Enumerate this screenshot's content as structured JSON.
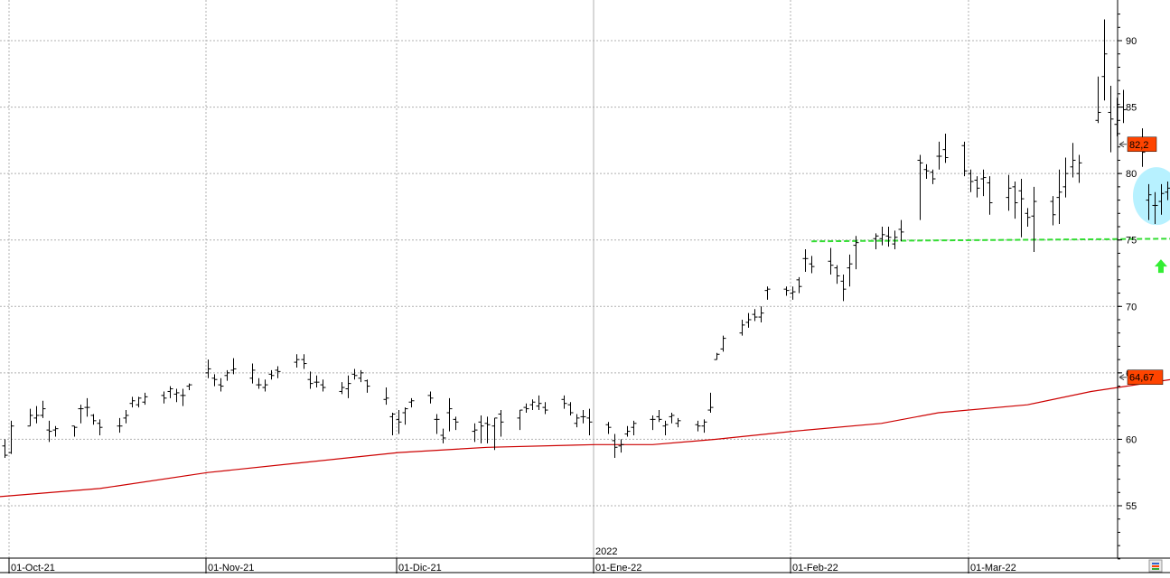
{
  "chart_data": {
    "type": "ohlc",
    "title": "",
    "xlabel": "",
    "ylabel": "",
    "ylim": [
      50.5,
      92.5
    ],
    "grid": true,
    "y_ticks": [
      55,
      60,
      65,
      70,
      75,
      80,
      85,
      90
    ],
    "y_tick_labels": [
      "55",
      "60",
      "65",
      "70",
      "75",
      "80",
      "85",
      "90"
    ],
    "x_tick_labels": [
      {
        "date": "2021-10-01",
        "label": "01-Oct-21"
      },
      {
        "date": "2021-11-01",
        "label": "01-Nov-21"
      },
      {
        "date": "2021-12-01",
        "label": "01-Dic-21"
      },
      {
        "date": "2022-01-01",
        "label": "01-Ene-22"
      },
      {
        "date": "2022-02-01",
        "label": "01-Feb-22"
      },
      {
        "date": "2022-03-01",
        "label": "01-Mar-22"
      }
    ],
    "year_marker": {
      "date": "2022-01-01",
      "label": "2022"
    },
    "series": [
      {
        "kind": "ohlc",
        "color": "#000000",
        "bars": [
          [
            "2021-09-30",
            59.5,
            60.0,
            58.6,
            58.8
          ],
          [
            "2021-10-01",
            59.0,
            61.4,
            58.9,
            61.0
          ],
          [
            "2021-10-04",
            61.0,
            62.3,
            61.0,
            61.8
          ],
          [
            "2021-10-05",
            61.6,
            62.5,
            61.2,
            61.8
          ],
          [
            "2021-10-06",
            61.8,
            62.9,
            61.6,
            62.3
          ],
          [
            "2021-10-07",
            60.7,
            61.4,
            59.8,
            60.6
          ],
          [
            "2021-10-08",
            60.7,
            61.0,
            60.2,
            60.8
          ],
          [
            "2021-10-11",
            61.0,
            61.0,
            60.2,
            60.9
          ],
          [
            "2021-10-12",
            62.3,
            62.6,
            61.2,
            62.3
          ],
          [
            "2021-10-13",
            62.4,
            63.1,
            61.7,
            62.4
          ],
          [
            "2021-10-14",
            61.8,
            61.9,
            61.1,
            61.4
          ],
          [
            "2021-10-15",
            61.2,
            61.5,
            60.3,
            60.9
          ],
          [
            "2021-10-18",
            61.0,
            61.6,
            60.5,
            61.0
          ],
          [
            "2021-10-19",
            61.6,
            62.2,
            61.2,
            61.8
          ],
          [
            "2021-10-20",
            62.7,
            63.2,
            62.4,
            62.9
          ],
          [
            "2021-10-21",
            62.6,
            63.2,
            62.4,
            63.1
          ],
          [
            "2021-10-22",
            62.8,
            63.5,
            62.6,
            63.2
          ],
          [
            "2021-10-25",
            63.3,
            63.6,
            62.7,
            63.1
          ],
          [
            "2021-10-26",
            63.6,
            64.0,
            63.1,
            63.8
          ],
          [
            "2021-10-27",
            63.4,
            63.8,
            62.8,
            63.5
          ],
          [
            "2021-10-28",
            63.3,
            63.8,
            62.5,
            63.3
          ],
          [
            "2021-10-29",
            64.0,
            64.2,
            63.7,
            64.1
          ],
          [
            "2021-11-01",
            65.0,
            66.0,
            64.6,
            65.3
          ],
          [
            "2021-11-02",
            64.6,
            64.9,
            64.0,
            64.5
          ],
          [
            "2021-11-03",
            64.1,
            64.6,
            63.6,
            64.0
          ],
          [
            "2021-11-04",
            64.8,
            65.2,
            64.4,
            65.0
          ],
          [
            "2021-11-05",
            65.2,
            66.1,
            64.9,
            65.3
          ],
          [
            "2021-11-08",
            64.6,
            65.7,
            64.2,
            65.2
          ],
          [
            "2021-11-09",
            64.1,
            64.6,
            63.8,
            64.1
          ],
          [
            "2021-11-10",
            63.9,
            64.5,
            63.6,
            64.1
          ],
          [
            "2021-11-11",
            64.9,
            65.2,
            64.5,
            64.8
          ],
          [
            "2021-11-12",
            65.2,
            65.5,
            64.6,
            65.1
          ],
          [
            "2021-11-15",
            65.8,
            66.4,
            65.4,
            66.0
          ],
          [
            "2021-11-16",
            66.0,
            66.4,
            65.3,
            65.7
          ],
          [
            "2021-11-17",
            64.5,
            65.1,
            63.8,
            64.2
          ],
          [
            "2021-11-18",
            64.3,
            64.8,
            63.9,
            64.3
          ],
          [
            "2021-11-19",
            64.1,
            64.5,
            63.6,
            63.9
          ],
          [
            "2021-11-22",
            63.6,
            64.3,
            63.4,
            63.9
          ],
          [
            "2021-11-23",
            63.8,
            64.8,
            63.1,
            64.2
          ],
          [
            "2021-11-24",
            64.9,
            65.3,
            64.5,
            64.8
          ],
          [
            "2021-11-25",
            64.6,
            65.2,
            64.3,
            65.0
          ],
          [
            "2021-11-26",
            64.4,
            64.5,
            63.5,
            64.0
          ],
          [
            "2021-11-29",
            63.0,
            63.9,
            62.6,
            63.1
          ],
          [
            "2021-11-30",
            61.7,
            62.0,
            60.3,
            61.9
          ],
          [
            "2021-12-01",
            61.5,
            62.2,
            60.4,
            61.3
          ],
          [
            "2021-12-02",
            62.0,
            62.4,
            61.1,
            62.3
          ],
          [
            "2021-12-03",
            62.8,
            63.1,
            62.4,
            62.9
          ],
          [
            "2021-12-06",
            63.3,
            63.6,
            62.7,
            63.1
          ],
          [
            "2021-12-07",
            61.5,
            61.9,
            60.4,
            61.5
          ],
          [
            "2021-12-08",
            60.3,
            60.8,
            59.7,
            60.1
          ],
          [
            "2021-12-09",
            62.0,
            63.1,
            60.6,
            62.3
          ],
          [
            "2021-12-10",
            61.5,
            61.7,
            60.7,
            61.3
          ],
          [
            "2021-12-13",
            60.6,
            61.2,
            59.8,
            60.7
          ],
          [
            "2021-12-14",
            61.3,
            61.8,
            59.7,
            61.0
          ],
          [
            "2021-12-15",
            61.2,
            61.7,
            59.7,
            61.1
          ],
          [
            "2021-12-16",
            61.0,
            61.6,
            59.2,
            61.6
          ],
          [
            "2021-12-17",
            61.9,
            62.2,
            60.2,
            61.3
          ],
          [
            "2021-12-20",
            61.6,
            62.2,
            60.7,
            62.2
          ],
          [
            "2021-12-21",
            62.4,
            62.7,
            62.0,
            62.3
          ],
          [
            "2021-12-22",
            62.6,
            63.0,
            62.2,
            62.8
          ],
          [
            "2021-12-23",
            62.5,
            63.3,
            62.2,
            62.7
          ],
          [
            "2021-12-24",
            62.4,
            62.8,
            61.9,
            62.2
          ],
          [
            "2021-12-27",
            63.0,
            63.3,
            62.3,
            62.7
          ],
          [
            "2021-12-28",
            62.6,
            62.8,
            61.8,
            62.0
          ],
          [
            "2021-12-29",
            61.2,
            61.9,
            60.9,
            61.6
          ],
          [
            "2021-12-30",
            61.7,
            62.2,
            61.2,
            61.7
          ],
          [
            "2021-12-31",
            61.6,
            62.3,
            60.3,
            61.3
          ],
          [
            "2022-01-03",
            61.1,
            61.3,
            60.4,
            60.9
          ],
          [
            "2022-01-04",
            59.9,
            60.4,
            58.6,
            59.4
          ],
          [
            "2022-01-05",
            59.5,
            60.0,
            59.0,
            59.6
          ],
          [
            "2022-01-06",
            60.4,
            61.0,
            60.2,
            60.6
          ],
          [
            "2022-01-07",
            60.9,
            61.4,
            60.3,
            61.2
          ],
          [
            "2022-01-10",
            61.5,
            61.8,
            60.7,
            61.5
          ],
          [
            "2022-01-11",
            61.7,
            62.2,
            61.3,
            61.5
          ],
          [
            "2022-01-12",
            61.0,
            61.4,
            60.3,
            61.1
          ],
          [
            "2022-01-13",
            61.7,
            62.0,
            61.2,
            61.8
          ],
          [
            "2022-01-14",
            61.2,
            61.6,
            60.9,
            61.4
          ],
          [
            "2022-01-17",
            61.1,
            61.4,
            60.6,
            61.0
          ],
          [
            "2022-01-18",
            61.0,
            61.5,
            60.5,
            61.3
          ],
          [
            "2022-01-19",
            62.2,
            63.5,
            62.0,
            62.4
          ],
          [
            "2022-01-20",
            66.0,
            66.5,
            66.0,
            66.4
          ],
          [
            "2022-01-21",
            66.8,
            67.8,
            66.6,
            67.6
          ],
          [
            "2022-01-24",
            68.0,
            69.0,
            67.8,
            68.6
          ],
          [
            "2022-01-25",
            68.8,
            69.5,
            68.4,
            69.0
          ],
          [
            "2022-01-26",
            69.4,
            69.8,
            68.9,
            69.2
          ],
          [
            "2022-01-27",
            69.2,
            70.0,
            68.8,
            69.5
          ],
          [
            "2022-01-28",
            71.2,
            71.5,
            70.5,
            71.3
          ],
          [
            "2022-01-31",
            71.3,
            71.5,
            70.8,
            71.2
          ],
          [
            "2022-02-01",
            71.0,
            71.5,
            70.5,
            71.1
          ],
          [
            "2022-02-02",
            72.0,
            72.2,
            71.0,
            71.5
          ],
          [
            "2022-02-03",
            73.6,
            74.3,
            72.6,
            73.6
          ],
          [
            "2022-02-04",
            73.2,
            73.8,
            72.5,
            73.0
          ],
          [
            "2022-02-07",
            73.4,
            74.4,
            72.4,
            73.1
          ],
          [
            "2022-02-08",
            72.9,
            73.1,
            71.7,
            72.3
          ],
          [
            "2022-02-09",
            71.9,
            72.4,
            70.4,
            71.3
          ],
          [
            "2022-02-10",
            72.9,
            73.9,
            71.5,
            73.2
          ],
          [
            "2022-02-11",
            74.6,
            75.3,
            72.8,
            74.8
          ],
          [
            "2022-02-14",
            75.1,
            75.5,
            74.3,
            75.3
          ],
          [
            "2022-02-15",
            75.1,
            76.0,
            74.6,
            75.4
          ],
          [
            "2022-02-16",
            75.3,
            76.0,
            74.5,
            75.2
          ],
          [
            "2022-02-17",
            74.7,
            75.7,
            74.3,
            75.2
          ],
          [
            "2022-02-18",
            75.8,
            76.5,
            74.9,
            75.6
          ],
          [
            "2022-02-21",
            81.0,
            81.4,
            76.5,
            80.8
          ],
          [
            "2022-02-22",
            80.3,
            80.7,
            79.6,
            80.2
          ],
          [
            "2022-02-23",
            80.1,
            80.3,
            79.2,
            79.6
          ],
          [
            "2022-02-24",
            81.3,
            82.4,
            80.3,
            81.3
          ],
          [
            "2022-02-25",
            81.8,
            83.0,
            80.8,
            81.2
          ],
          [
            "2022-02-28",
            82.1,
            82.4,
            79.8,
            80.2
          ]
        ]
      },
      {
        "kind": "ohlc_tail",
        "color": "#000000",
        "bars": [
          [
            "2022-03-01",
            80.0,
            80.3,
            78.6,
            79.4
          ],
          [
            "2022-03-02",
            79.5,
            79.8,
            78.2,
            78.9
          ],
          [
            "2022-03-03",
            79.6,
            80.3,
            78.3,
            79.7
          ],
          [
            "2022-03-04",
            79.3,
            79.8,
            76.9,
            77.8
          ],
          [
            "2022-03-07",
            78.2,
            79.9,
            77.2,
            78.9
          ],
          [
            "2022-03-08",
            79.0,
            79.4,
            76.6,
            77.8
          ],
          [
            "2022-03-09",
            78.7,
            79.6,
            75.2,
            78.1
          ],
          [
            "2022-03-10",
            77.0,
            77.4,
            76.0,
            76.7
          ],
          [
            "2022-03-11",
            76.8,
            79.0,
            74.1,
            77.9
          ],
          [
            "2022-03-14",
            77.9,
            78.3,
            76.1,
            76.9
          ],
          [
            "2022-03-15",
            78.2,
            80.3,
            76.2,
            78.6
          ],
          [
            "2022-03-16",
            79.0,
            81.2,
            78.2,
            80.0
          ],
          [
            "2022-03-17",
            80.5,
            82.3,
            79.7,
            81.0
          ],
          [
            "2022-03-18",
            80.0,
            81.4,
            79.3,
            80.8
          ],
          [
            "2022-03-21",
            84.0,
            87.3,
            83.8,
            84.6
          ],
          [
            "2022-03-22",
            87.3,
            91.6,
            85.5,
            89.0
          ],
          [
            "2022-03-23",
            84.6,
            86.6,
            81.6,
            84.1
          ],
          [
            "2022-03-24",
            83.7,
            85.7,
            82.8,
            85.2
          ],
          [
            "2022-03-25",
            85.0,
            86.3,
            83.8,
            84.8
          ],
          [
            "2022-03-28",
            82.3,
            83.4,
            80.5,
            81.6
          ],
          [
            "2022-03-29",
            78.0,
            79.2,
            76.5,
            78.4
          ],
          [
            "2022-03-30",
            77.6,
            78.6,
            76.2,
            77.6
          ],
          [
            "2022-03-31",
            77.9,
            79.2,
            76.9,
            78.5
          ],
          [
            "2022-04-01",
            78.6,
            79.4,
            78.0,
            78.9
          ],
          [
            "2022-04-04",
            80.0,
            82.5,
            79.8,
            82.2
          ]
        ]
      },
      {
        "kind": "line",
        "name": "",
        "color": "#cc0000",
        "points": [
          [
            "2021-09-27",
            55.6
          ],
          [
            "2021-10-15",
            56.3
          ],
          [
            "2021-11-01",
            57.5
          ],
          [
            "2021-11-15",
            58.2
          ],
          [
            "2021-12-01",
            59.0
          ],
          [
            "2021-12-15",
            59.4
          ],
          [
            "2022-01-01",
            59.6
          ],
          [
            "2022-01-10",
            59.6
          ],
          [
            "2022-01-20",
            60.0
          ],
          [
            "2022-02-01",
            60.6
          ],
          [
            "2022-02-15",
            61.2
          ],
          [
            "2022-02-24",
            62.0
          ],
          [
            "2022-03-10",
            62.6
          ],
          [
            "2022-03-20",
            63.6
          ],
          [
            "2022-04-04",
            64.67
          ]
        ]
      },
      {
        "kind": "dashed_line",
        "name": "",
        "color": "#33dd33",
        "points": [
          [
            "2022-02-04",
            74.9
          ],
          [
            "2022-04-04",
            75.1
          ]
        ]
      }
    ],
    "price_badges": [
      {
        "value": 82.2,
        "label": "82,2",
        "color": "#ff4400"
      },
      {
        "value": 64.67,
        "label": "64,67",
        "color": "#ff4400"
      }
    ],
    "annotations": [
      {
        "kind": "ellipse",
        "center_date": "2022-03-30",
        "center_value": 78.3,
        "color": "#aaeeff"
      },
      {
        "kind": "arrow_up",
        "date": "2022-03-30",
        "value": 73.0,
        "color": "#33ee33"
      }
    ]
  },
  "ui": {
    "corner_icon": "color-palette-icon"
  }
}
